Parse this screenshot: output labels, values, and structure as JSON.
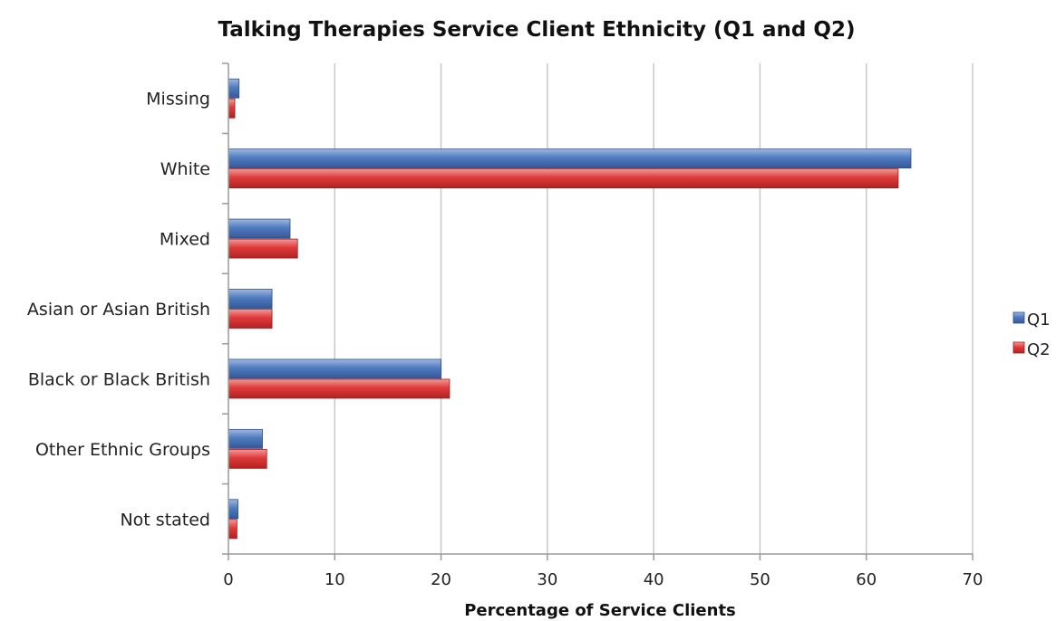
{
  "chart_data": {
    "type": "bar",
    "orientation": "horizontal",
    "title": "Talking Therapies Service Client Ethnicity (Q1 and Q2)",
    "xlabel": "Percentage of Service Clients",
    "ylabel": "",
    "xlim": [
      0,
      70
    ],
    "xticks": [
      0,
      10,
      20,
      30,
      40,
      50,
      60,
      70
    ],
    "grid": true,
    "legend_position": "right",
    "categories": [
      "Missing",
      "White",
      "Mixed",
      "Asian or Asian British",
      "Black or Black British",
      "Other Ethnic Groups",
      "Not stated"
    ],
    "series": [
      {
        "name": "Q1",
        "color": "#4f7bbf",
        "values": [
          1.0,
          64.2,
          5.8,
          4.1,
          20.0,
          3.2,
          0.9
        ]
      },
      {
        "name": "Q2",
        "color": "#e03a3a",
        "values": [
          0.6,
          63.0,
          6.5,
          4.1,
          20.8,
          3.6,
          0.8
        ]
      }
    ]
  }
}
